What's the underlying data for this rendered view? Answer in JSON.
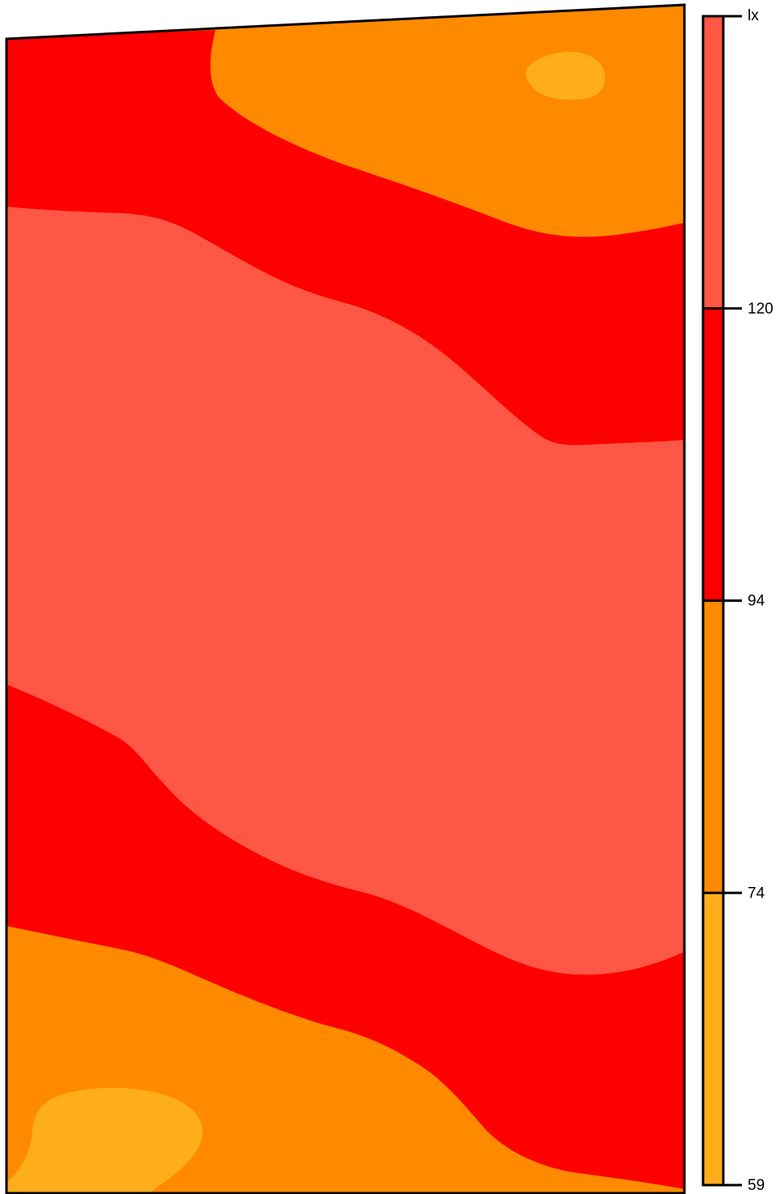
{
  "chart_data": {
    "type": "contour",
    "colorbar": {
      "unit": "lx",
      "levels": [
        59,
        74,
        94,
        120
      ],
      "colors": [
        "#fdae1a",
        "#ff8a00",
        "#ff0000",
        "#ff5745"
      ]
    }
  }
}
